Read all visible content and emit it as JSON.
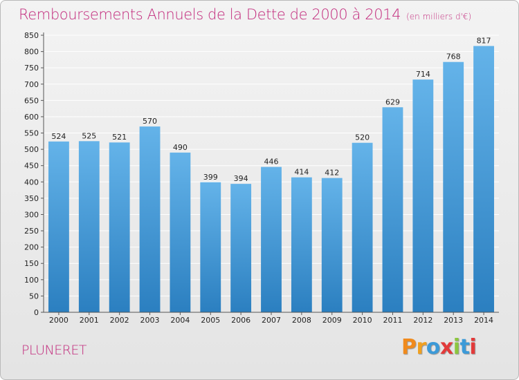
{
  "colors": {
    "title": "#c22a7c",
    "commune": "#c22a7c",
    "bar_top": "#64b3e9",
    "bar_bottom": "#2b7fc0",
    "grid": "#ffffff",
    "axis": "#555555"
  },
  "header": {
    "title": "Remboursements Annuels de la Dette de 2000 à 2014",
    "subtitle": "(en milliers d'€)"
  },
  "footer": {
    "commune": "PLUNERET",
    "logo_letters": [
      "P",
      "r",
      "o",
      "x",
      "i",
      "t",
      "i"
    ],
    "logo_colors": [
      "#f08a1c",
      "#f0a020",
      "#3c9ad8",
      "#e23a3a",
      "#8cc63f",
      "#3c9ad8",
      "#e23a3a"
    ]
  },
  "chart_data": {
    "type": "bar",
    "title": "Remboursements Annuels de la Dette de 2000 à 2014",
    "xlabel": "",
    "ylabel": "",
    "categories": [
      "2000",
      "2001",
      "2002",
      "2003",
      "2004",
      "2005",
      "2006",
      "2007",
      "2008",
      "2009",
      "2010",
      "2011",
      "2012",
      "2013",
      "2014"
    ],
    "values": [
      524,
      525,
      521,
      570,
      490,
      399,
      394,
      446,
      414,
      412,
      520,
      629,
      714,
      768,
      817
    ],
    "ylim": [
      0,
      850
    ],
    "yticks": [
      0,
      50,
      100,
      150,
      200,
      250,
      300,
      350,
      400,
      450,
      500,
      550,
      600,
      650,
      700,
      750,
      800,
      850
    ],
    "grid": true
  }
}
